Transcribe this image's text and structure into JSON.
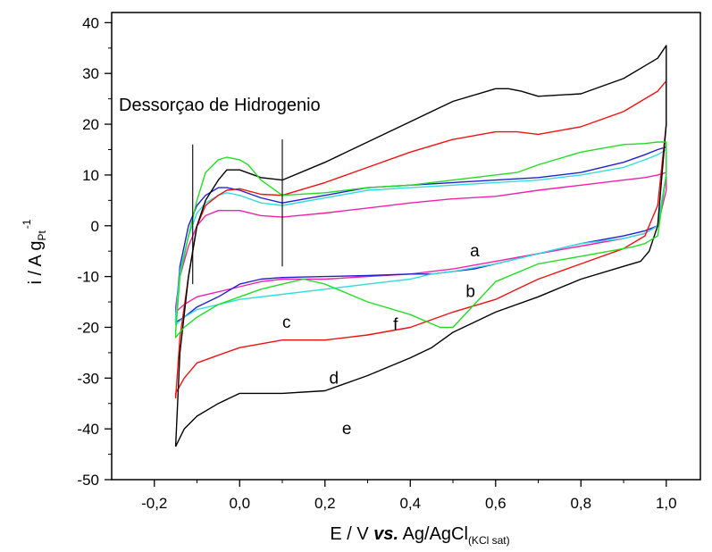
{
  "chart_data": {
    "type": "line",
    "title": "",
    "xlabel": {
      "main": "E / V ",
      "emph": "vs.",
      "ref": " Ag/AgCl",
      "sub": "(KCl sat)"
    },
    "ylabel": {
      "main": "i / A g",
      "sub": "Pt",
      "sup": "-1"
    },
    "xlim": [
      -0.3,
      1.08
    ],
    "ylim": [
      -50,
      42
    ],
    "xticks": [
      -0.2,
      0.0,
      0.2,
      0.4,
      0.6,
      0.8,
      1.0
    ],
    "xtick_labels": [
      "-0,2",
      "0,0",
      "0,2",
      "0,4",
      "0,6",
      "0,8",
      "1,0"
    ],
    "yticks": [
      -50,
      -40,
      -30,
      -20,
      -10,
      0,
      10,
      20,
      30,
      40
    ],
    "ytick_labels": [
      "-50",
      "-40",
      "-30",
      "-20",
      "-10",
      "0",
      "10",
      "20",
      "30",
      "40"
    ],
    "grid": false,
    "annotation": "Dessorçao de Hidrogenio",
    "marker_lines": [
      {
        "x": -0.11,
        "y_from": -11.5,
        "y_to": 16
      },
      {
        "x": 0.1,
        "y_from": -8,
        "y_to": 17
      }
    ],
    "series": [
      {
        "name": "a",
        "color": "#ee22aa",
        "label_pos": {
          "x": 0.54,
          "y": -5
        },
        "x": [
          -0.15,
          -0.14,
          -0.12,
          -0.1,
          -0.08,
          -0.05,
          0.0,
          0.05,
          0.1,
          0.2,
          0.3,
          0.4,
          0.5,
          0.6,
          0.7,
          0.8,
          0.9,
          0.95,
          0.98,
          1.0,
          1.0,
          0.98,
          0.95,
          0.9,
          0.8,
          0.7,
          0.6,
          0.5,
          0.4,
          0.3,
          0.2,
          0.15,
          0.1,
          0.05,
          0.0,
          -0.05,
          -0.1,
          -0.13,
          -0.15,
          -0.15
        ],
        "y": [
          -16,
          -10,
          -4,
          0,
          2,
          3,
          3,
          2,
          1.7,
          2.5,
          3.5,
          4.5,
          5.3,
          5.8,
          7,
          8,
          9,
          9.5,
          10,
          10.5,
          7,
          0,
          -1.5,
          -2.5,
          -4,
          -5.5,
          -7,
          -8.5,
          -9.5,
          -10,
          -10.5,
          -10.5,
          -10.5,
          -11,
          -12,
          -13,
          -14,
          -15.5,
          -17,
          -16
        ]
      },
      {
        "name": "b",
        "color": "#2222cc",
        "label_pos": {
          "x": 0.53,
          "y": -13
        },
        "x": [
          -0.15,
          -0.14,
          -0.12,
          -0.1,
          -0.08,
          -0.05,
          -0.03,
          0.0,
          0.05,
          0.1,
          0.2,
          0.3,
          0.4,
          0.5,
          0.6,
          0.7,
          0.8,
          0.9,
          0.95,
          0.98,
          1.0,
          1.0,
          0.98,
          0.95,
          0.9,
          0.8,
          0.7,
          0.6,
          0.55,
          0.5,
          0.45,
          0.4,
          0.3,
          0.2,
          0.1,
          0.05,
          0.0,
          -0.05,
          -0.1,
          -0.13,
          -0.15,
          -0.15
        ],
        "y": [
          -18,
          -8,
          0,
          4,
          6,
          7.5,
          7.5,
          7,
          5.5,
          4.5,
          6,
          7.5,
          8,
          8.5,
          9,
          9.5,
          10.5,
          12.5,
          14,
          15,
          15.5,
          10,
          0,
          -1,
          -2,
          -3.5,
          -5.5,
          -7.5,
          -8.5,
          -9,
          -9.5,
          -9.5,
          -9.8,
          -10,
          -10.2,
          -10.5,
          -11.5,
          -14,
          -16,
          -18,
          -19,
          -18
        ]
      },
      {
        "name": "c",
        "color": "#33dddd",
        "label_pos": {
          "x": 0.1,
          "y": -19
        },
        "x": [
          -0.15,
          -0.14,
          -0.12,
          -0.1,
          -0.08,
          -0.05,
          -0.03,
          0.0,
          0.05,
          0.1,
          0.2,
          0.3,
          0.4,
          0.5,
          0.6,
          0.7,
          0.8,
          0.9,
          0.95,
          0.98,
          1.0,
          1.0,
          0.98,
          0.95,
          0.9,
          0.8,
          0.7,
          0.6,
          0.5,
          0.45,
          0.4,
          0.3,
          0.2,
          0.1,
          0.0,
          -0.05,
          -0.1,
          -0.13,
          -0.15,
          -0.15
        ],
        "y": [
          -18,
          -9,
          -2,
          2.5,
          4.5,
          6,
          6.5,
          6,
          4.5,
          4,
          5.5,
          7,
          7.5,
          8,
          8.5,
          9,
          10,
          11.5,
          13,
          14,
          15,
          10,
          0,
          -1.5,
          -2.5,
          -3.5,
          -5.5,
          -7.5,
          -9,
          -9.5,
          -10.5,
          -11.5,
          -12.5,
          -13.5,
          -14.5,
          -15.5,
          -16.5,
          -18,
          -19.5,
          -18
        ]
      },
      {
        "name": "d",
        "color": "#ee1111",
        "label_pos": {
          "x": 0.21,
          "y": -30
        },
        "x": [
          -0.15,
          -0.14,
          -0.12,
          -0.1,
          -0.08,
          -0.05,
          -0.03,
          0.0,
          0.05,
          0.1,
          0.2,
          0.3,
          0.4,
          0.5,
          0.6,
          0.65,
          0.7,
          0.8,
          0.9,
          0.95,
          0.98,
          1.0,
          1.0,
          0.98,
          0.95,
          0.9,
          0.8,
          0.7,
          0.65,
          0.6,
          0.5,
          0.4,
          0.3,
          0.2,
          0.1,
          0.0,
          -0.05,
          -0.1,
          -0.13,
          -0.15,
          -0.15
        ],
        "y": [
          -34,
          -22,
          -10,
          0,
          4,
          6,
          7,
          7.3,
          6.2,
          6,
          8.5,
          11.5,
          14.5,
          17,
          18.5,
          18.5,
          18,
          19.5,
          22.5,
          25,
          26.5,
          28.5,
          20,
          4,
          -2,
          -4.5,
          -7.5,
          -10.5,
          -12.5,
          -14.5,
          -17,
          -20,
          -21.5,
          -22.5,
          -22.5,
          -24,
          -25.5,
          -27,
          -30,
          -33,
          -34
        ]
      },
      {
        "name": "e",
        "color": "#000000",
        "label_pos": {
          "x": 0.24,
          "y": -40
        },
        "x": [
          -0.15,
          -0.14,
          -0.12,
          -0.1,
          -0.08,
          -0.05,
          -0.03,
          0.0,
          0.05,
          0.1,
          0.2,
          0.3,
          0.4,
          0.5,
          0.6,
          0.63,
          0.66,
          0.7,
          0.8,
          0.9,
          0.95,
          0.98,
          1.0,
          1.0,
          0.98,
          0.96,
          0.94,
          0.9,
          0.8,
          0.7,
          0.6,
          0.5,
          0.45,
          0.4,
          0.3,
          0.2,
          0.1,
          0.05,
          0.0,
          -0.05,
          -0.1,
          -0.13,
          -0.15,
          -0.15
        ],
        "y": [
          -43.5,
          -25,
          -10,
          0,
          5,
          9,
          11,
          11,
          9.5,
          9,
          12.5,
          16.5,
          20.5,
          24.5,
          27,
          27,
          26.5,
          25.5,
          26,
          29,
          31.5,
          33,
          35.5,
          20,
          0,
          -5,
          -7,
          -8,
          -10.5,
          -14,
          -17,
          -21,
          -24,
          -26,
          -29.5,
          -32.5,
          -33,
          -33,
          -33,
          -35,
          -37.5,
          -40,
          -43.5,
          -43.5
        ]
      },
      {
        "name": "f",
        "color": "#22dd22",
        "label_pos": {
          "x": 0.36,
          "y": -19.5
        },
        "x": [
          -0.15,
          -0.14,
          -0.12,
          -0.1,
          -0.08,
          -0.05,
          -0.03,
          0.0,
          0.02,
          0.05,
          0.1,
          0.2,
          0.3,
          0.4,
          0.5,
          0.6,
          0.65,
          0.7,
          0.8,
          0.9,
          0.95,
          0.98,
          1.0,
          1.0,
          0.98,
          0.95,
          0.92,
          0.9,
          0.8,
          0.7,
          0.6,
          0.55,
          0.5,
          0.47,
          0.4,
          0.3,
          0.2,
          0.15,
          0.1,
          0.05,
          0.0,
          -0.05,
          -0.1,
          -0.13,
          -0.15,
          -0.15
        ],
        "y": [
          -21,
          -10,
          -2,
          5,
          10.5,
          13,
          13.5,
          13,
          12,
          9,
          6,
          6.5,
          7.5,
          8,
          9,
          10,
          10.5,
          12,
          14.5,
          16,
          16.2,
          16.5,
          16.5,
          10,
          -2,
          -3.5,
          -4.2,
          -4.5,
          -6,
          -7.5,
          -11,
          -15.5,
          -20,
          -20,
          -17.5,
          -15,
          -11.5,
          -10.5,
          -11.5,
          -12.5,
          -14,
          -15.5,
          -18,
          -20,
          -22,
          -21
        ]
      }
    ]
  }
}
